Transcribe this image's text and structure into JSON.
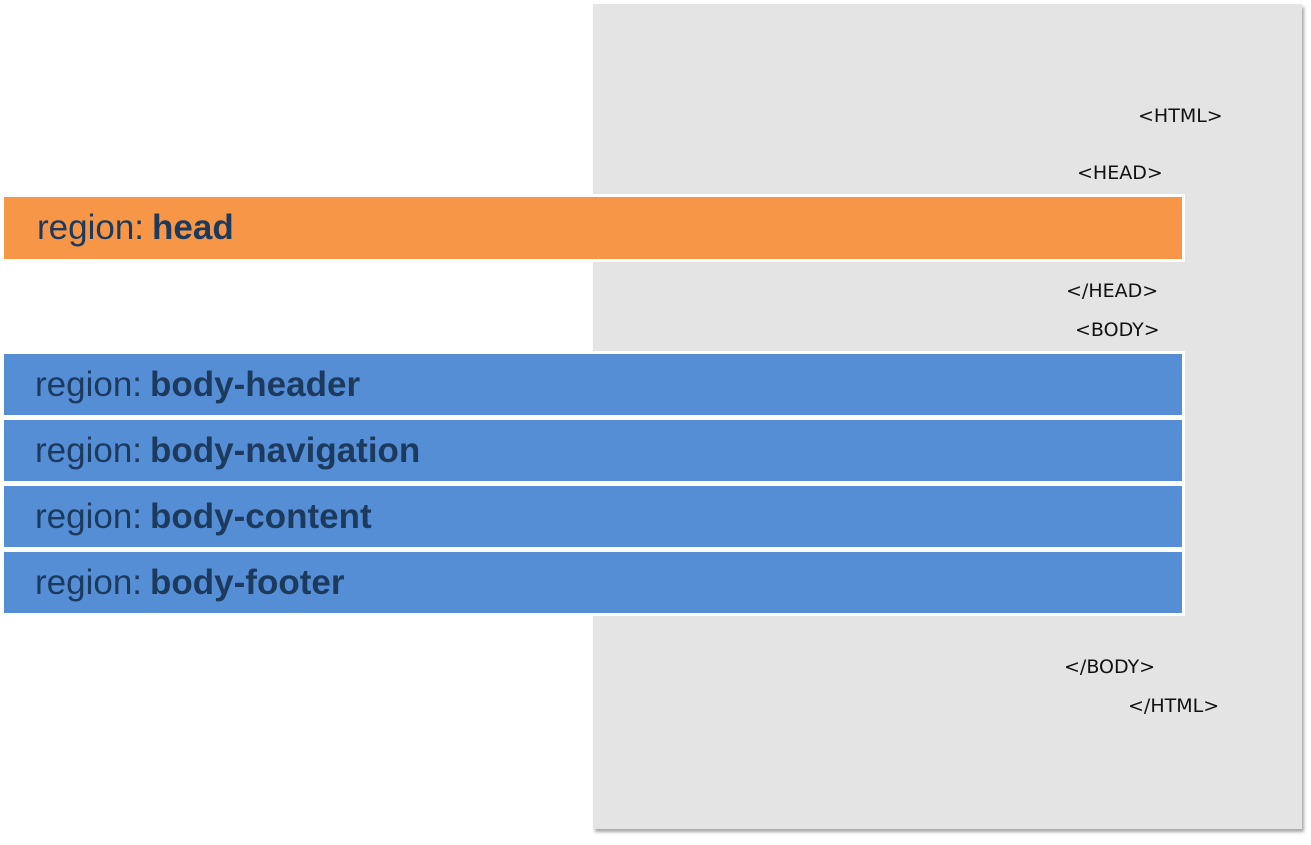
{
  "colors": {
    "document_background": "#e4e4e4",
    "head_region": "#f79646",
    "body_region": "#558ed5",
    "region_text": "#1c3a5e",
    "tag_text": "#111111"
  },
  "tags": {
    "html_open": "<HTML>",
    "head_open": "<HEAD>",
    "head_close": "</HEAD>",
    "body_open": "<BODY>",
    "body_close": "</BODY>",
    "html_close": "</HTML>"
  },
  "regions": [
    {
      "prefix": "region:",
      "name": "head",
      "kind": "head"
    },
    {
      "prefix": "region:",
      "name": "body-header",
      "kind": "body"
    },
    {
      "prefix": "region:",
      "name": "body-navigation",
      "kind": "body"
    },
    {
      "prefix": "region:",
      "name": "body-content",
      "kind": "body"
    },
    {
      "prefix": "region:",
      "name": "body-footer",
      "kind": "body"
    }
  ]
}
